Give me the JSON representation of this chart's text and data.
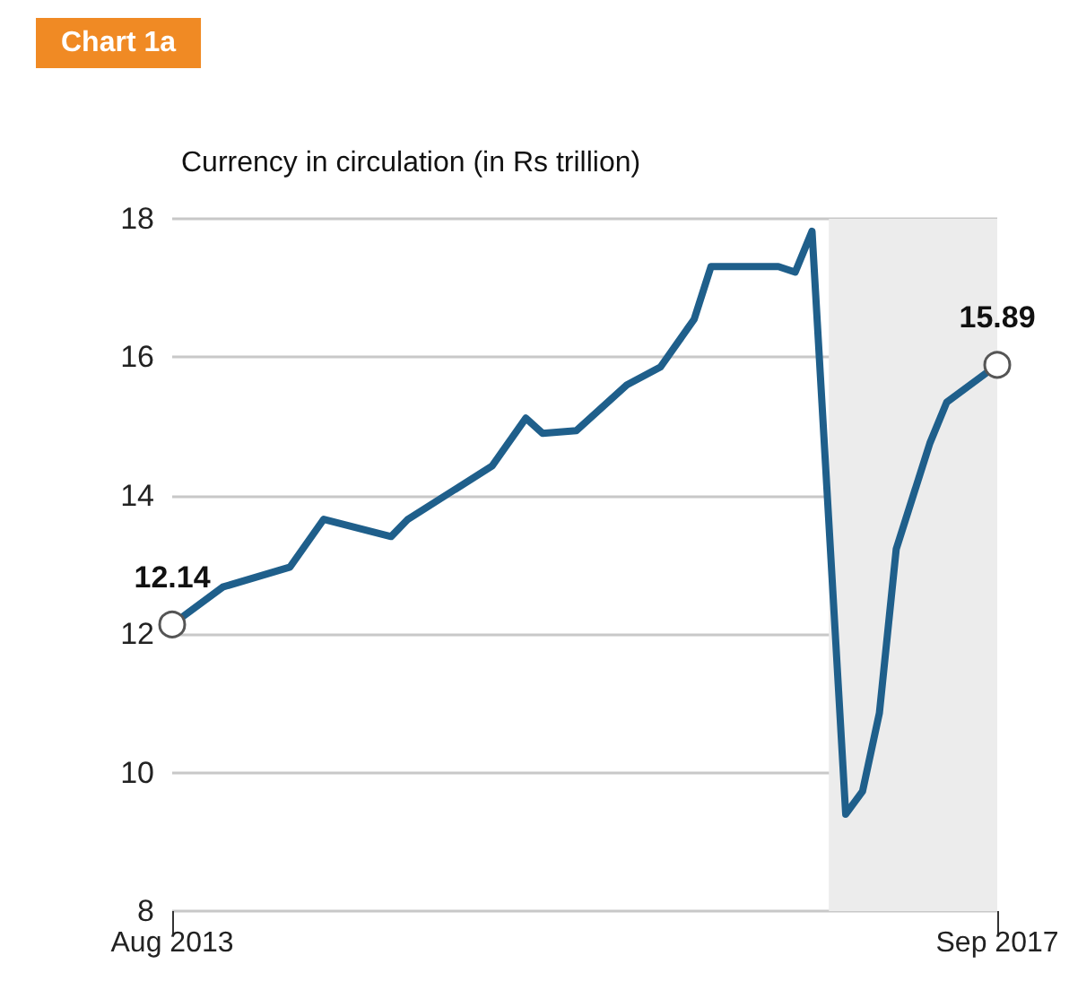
{
  "chart_data": {
    "type": "line",
    "title": "Chart 1a",
    "subtitle": "Currency in circulation (in Rs trillion)",
    "x": [
      "2013-08",
      "2013-11",
      "2014-03",
      "2014-05",
      "2014-09",
      "2014-10",
      "2015-03",
      "2015-05",
      "2015-06",
      "2015-08",
      "2015-11",
      "2016-01",
      "2016-03",
      "2016-04",
      "2016-08",
      "2016-09",
      "2016-10",
      "2016-12",
      "2017-01",
      "2017-02",
      "2017-03",
      "2017-05",
      "2017-06",
      "2017-09"
    ],
    "series": [
      {
        "color": "#1f5f8b",
        "values": [
          12.14,
          12.68,
          12.97,
          13.66,
          13.41,
          13.66,
          14.43,
          15.12,
          14.9,
          14.94,
          15.6,
          15.86,
          16.55,
          17.31,
          17.31,
          17.23,
          17.82,
          9.4,
          9.73,
          10.86,
          13.23,
          14.76,
          15.35,
          15.89
        ]
      }
    ],
    "xlim": [
      "2013-08",
      "2017-09"
    ],
    "xticks": [
      {
        "value": "2013-08",
        "label": "Aug 2013"
      },
      {
        "value": "2017-09",
        "label": "Sep 2017"
      }
    ],
    "ylim": [
      8,
      18
    ],
    "yticks": [
      8,
      10,
      12,
      14,
      16,
      18
    ],
    "grid": "y",
    "marker": "none",
    "line_style": "solid",
    "bands": [
      {
        "axis": "x",
        "from": "2016-11",
        "to": "2017-09",
        "color": "#ececec"
      }
    ],
    "annotations": [
      {
        "text": "12.14",
        "x": "2013-08",
        "y": 12.14
      },
      {
        "text": "15.89",
        "x": "2017-09",
        "y": 15.89
      }
    ]
  }
}
